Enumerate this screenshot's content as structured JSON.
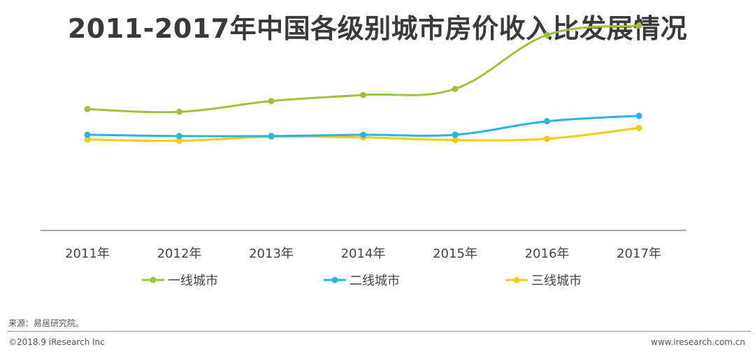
{
  "title": "2011-2017年中国各级别城市房价收入比发展情况",
  "chart_data": {
    "type": "line",
    "title": "2011-2017年中国各级别城市房价收入比发展情况",
    "categories": [
      "2011年",
      "2012年",
      "2013年",
      "2014年",
      "2015年",
      "2016年",
      "2017年"
    ],
    "series": [
      {
        "name": "一线城市",
        "color": "#9DC23D",
        "values": [
          18.0,
          17.6,
          19.2,
          20.1,
          21.0,
          29.0,
          30.4
        ]
      },
      {
        "name": "二线城市",
        "color": "#29B3E8",
        "values": [
          14.2,
          14.0,
          14.0,
          14.2,
          14.2,
          16.2,
          17.0
        ]
      },
      {
        "name": "三线城市",
        "color": "#F5CC0A",
        "values": [
          13.5,
          13.3,
          13.9,
          13.8,
          13.4,
          13.6,
          15.2
        ]
      }
    ],
    "ylim": [
      0,
      37
    ],
    "xlabel": "",
    "ylabel": "",
    "grid": false,
    "legend": "bottom"
  },
  "footer": {
    "source": "来源：易居研究院。",
    "copyright": "©2018.9 iResearch Inc",
    "website": "www.iresearch.com.cn"
  }
}
